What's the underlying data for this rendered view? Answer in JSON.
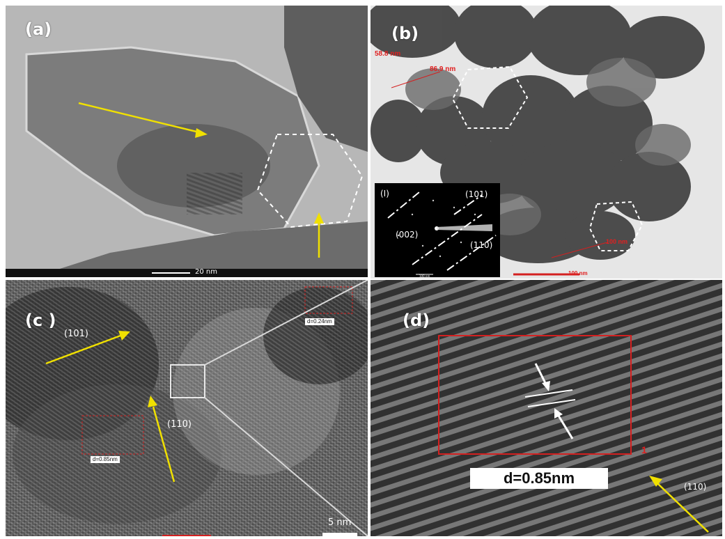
{
  "panel_a": {
    "label": "(a)",
    "scale_bar": "20 nm"
  },
  "panel_b": {
    "label": "(b)",
    "measurements": [
      "58.8 nm",
      "86.9 nm",
      "100 nm"
    ],
    "scale_bar": "100 nm",
    "saed_inset": {
      "label": "(I)",
      "planes": [
        "(101)",
        "(002)",
        "(110)"
      ],
      "scale_bar": "100 nm"
    }
  },
  "panel_c": {
    "label": "(c )",
    "planes": [
      "(101)",
      "(110)"
    ],
    "d_spacing_labels": [
      "d=0.85nm",
      "d=0.24nm"
    ],
    "scale_bar": "5 nm"
  },
  "panel_d": {
    "label": "(d)",
    "d_spacing": "d=0.85nm",
    "plane": "(110)",
    "marker": "1"
  },
  "colors": {
    "annotation_arrow": "#f0e000",
    "measurement": "#d42020",
    "boundary": "#ffffff"
  }
}
